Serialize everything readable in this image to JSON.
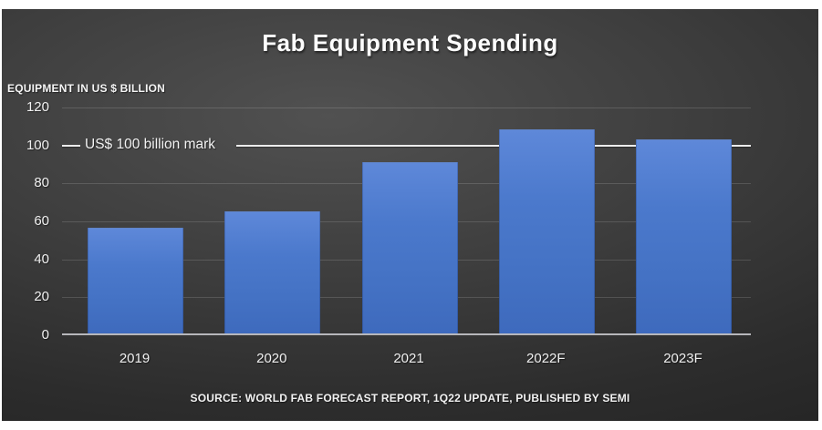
{
  "chart_data": {
    "type": "bar",
    "title": "Fab Equipment Spending",
    "axis_caption": "EQUIPMENT IN US $ BILLION",
    "categories": [
      "2019",
      "2020",
      "2021",
      "2022F",
      "2023F"
    ],
    "values": [
      55,
      64,
      90,
      107,
      102
    ],
    "ylim": [
      0,
      120
    ],
    "yticks": [
      0,
      20,
      40,
      60,
      80,
      100,
      120
    ],
    "grid": true,
    "legend": "none",
    "annotation": {
      "text": "US$ 100 billion mark",
      "value": 100
    },
    "source": "SOURCE: WORLD FAB FORECAST REPORT, 1Q22 UPDATE, PUBLISHED BY SEMI",
    "colors": {
      "bar": "#4472c4",
      "bar_gradient_top": "#5e88d9",
      "bar_gradient_bottom": "#3e6abd",
      "highlight_line": "#ececec",
      "gridline": "#4a4a4a",
      "axis_line": "#b7b7bb",
      "text": "#f2f2f2",
      "background_center": "#515151",
      "background_edge": "#222222",
      "page_background": "#ffffff"
    }
  }
}
